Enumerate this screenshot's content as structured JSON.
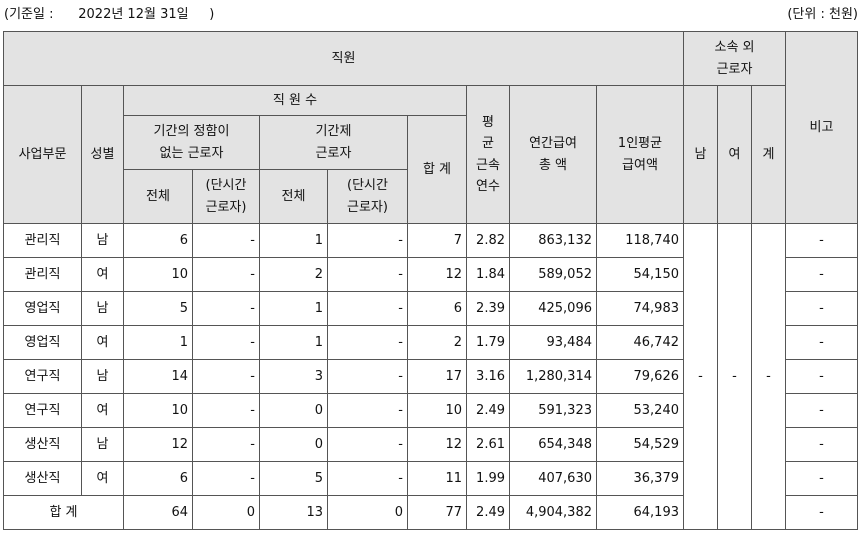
{
  "header": {
    "basis_date": "(기준일 :      2022년 12월 31일     )",
    "unit": "(단위 : 천원)"
  },
  "columns": {
    "employees": "직원",
    "external": [
      "소속 외",
      "근로자"
    ],
    "remarks": "비고",
    "division": "사업부문",
    "gender": "성별",
    "headcount": "직 원 수",
    "permanent": [
      "기간의 정함이",
      "없는 근로자"
    ],
    "contract": [
      "기간제",
      "근로자"
    ],
    "total_label": "전체",
    "part_time": [
      "(단시간",
      "근로자)"
    ],
    "sum": "합 계",
    "avg_tenure": [
      "평",
      "균",
      "근속",
      "연수"
    ],
    "annual_pay": [
      "연간급여",
      "총 액"
    ],
    "avg_pay": [
      "1인평균",
      "급여액"
    ],
    "male": "남",
    "female": "여",
    "ext_total": "계"
  },
  "rows": [
    {
      "division": "관리직",
      "gender": "남",
      "perm_total": "6",
      "perm_part": "-",
      "cont_total": "1",
      "cont_part": "-",
      "sum": "7",
      "tenure": "2.82",
      "annual": "863,132",
      "avg": "118,740",
      "remark": "-"
    },
    {
      "division": "관리직",
      "gender": "여",
      "perm_total": "10",
      "perm_part": "-",
      "cont_total": "2",
      "cont_part": "-",
      "sum": "12",
      "tenure": "1.84",
      "annual": "589,052",
      "avg": "54,150",
      "remark": "-"
    },
    {
      "division": "영업직",
      "gender": "남",
      "perm_total": "5",
      "perm_part": "-",
      "cont_total": "1",
      "cont_part": "-",
      "sum": "6",
      "tenure": "2.39",
      "annual": "425,096",
      "avg": "74,983",
      "remark": "-"
    },
    {
      "division": "영업직",
      "gender": "여",
      "perm_total": "1",
      "perm_part": "-",
      "cont_total": "1",
      "cont_part": "-",
      "sum": "2",
      "tenure": "1.79",
      "annual": "93,484",
      "avg": "46,742",
      "remark": "-"
    },
    {
      "division": "연구직",
      "gender": "남",
      "perm_total": "14",
      "perm_part": "-",
      "cont_total": "3",
      "cont_part": "-",
      "sum": "17",
      "tenure": "3.16",
      "annual": "1,280,314",
      "avg": "79,626",
      "remark": "-"
    },
    {
      "division": "연구직",
      "gender": "여",
      "perm_total": "10",
      "perm_part": "-",
      "cont_total": "0",
      "cont_part": "-",
      "sum": "10",
      "tenure": "2.49",
      "annual": "591,323",
      "avg": "53,240",
      "remark": "-"
    },
    {
      "division": "생산직",
      "gender": "남",
      "perm_total": "12",
      "perm_part": "-",
      "cont_total": "0",
      "cont_part": "-",
      "sum": "12",
      "tenure": "2.61",
      "annual": "654,348",
      "avg": "54,529",
      "remark": "-"
    },
    {
      "division": "생산직",
      "gender": "여",
      "perm_total": "6",
      "perm_part": "-",
      "cont_total": "5",
      "cont_part": "-",
      "sum": "11",
      "tenure": "1.99",
      "annual": "407,630",
      "avg": "36,379",
      "remark": "-"
    }
  ],
  "external_values": {
    "male": "-",
    "female": "-",
    "total": "-"
  },
  "total_row": {
    "label": "합 계",
    "perm_total": "64",
    "perm_part": "0",
    "cont_total": "13",
    "cont_part": "0",
    "sum": "77",
    "tenure": "2.49",
    "annual": "4,904,382",
    "avg": "64,193",
    "remark": "-"
  }
}
